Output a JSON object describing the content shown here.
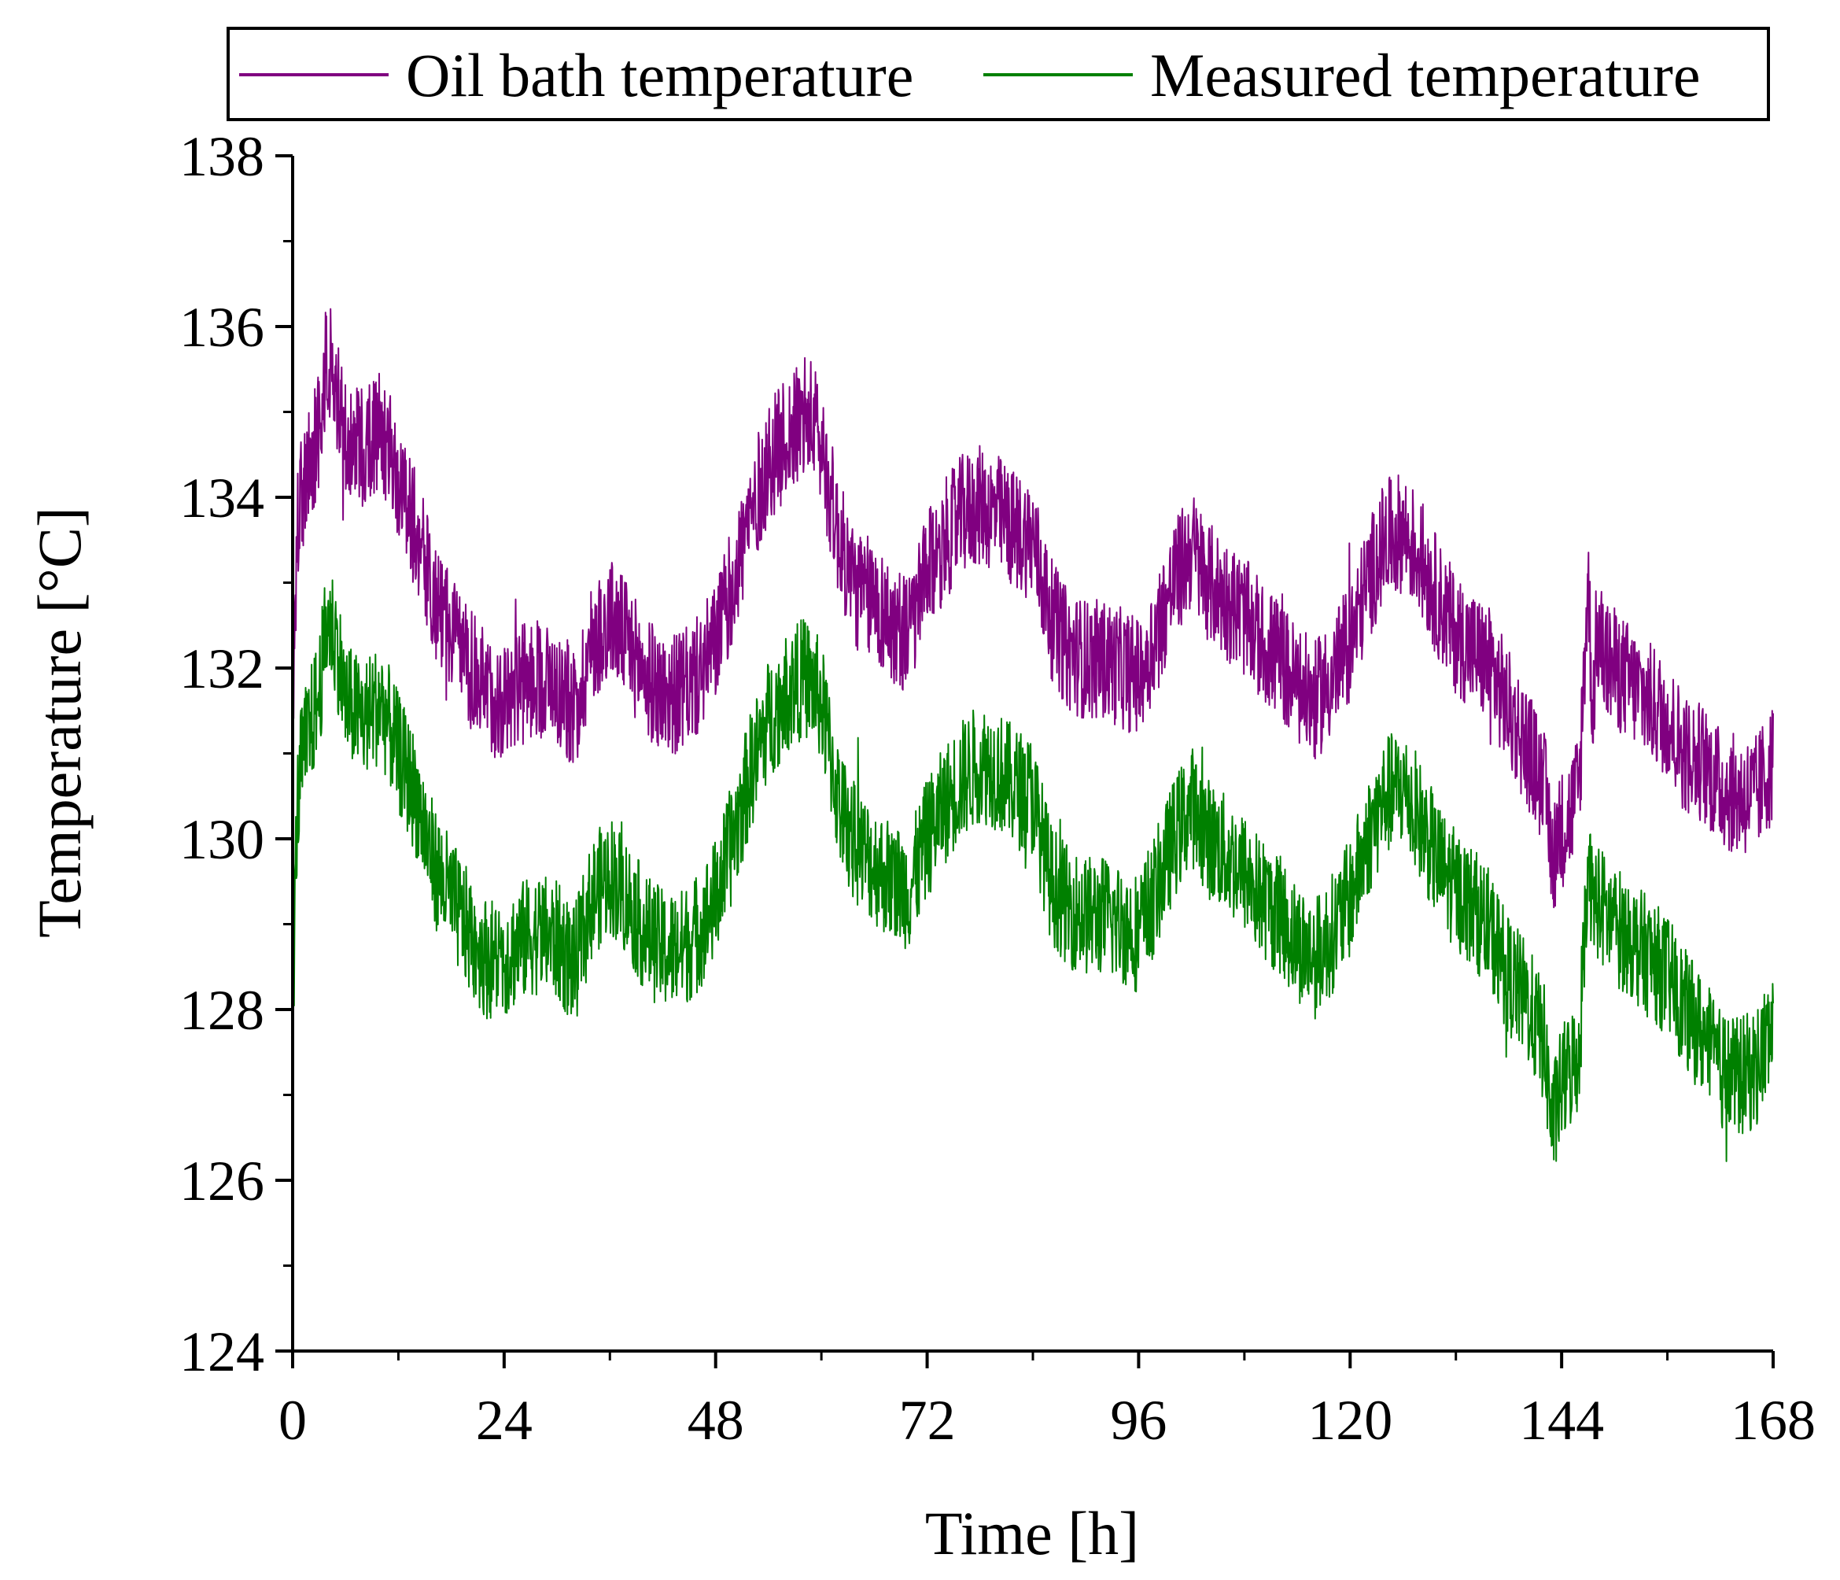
{
  "chart_data": {
    "type": "line",
    "title": "",
    "xlabel": "Time [h]",
    "ylabel": "Temperature [°C]",
    "xlim": [
      0,
      168
    ],
    "ylim": [
      124,
      138
    ],
    "xticks": [
      0,
      24,
      48,
      72,
      96,
      120,
      144,
      168
    ],
    "yticks": [
      124,
      126,
      128,
      130,
      132,
      134,
      136,
      138
    ],
    "x_minor_step": 12,
    "y_minor_step": 1,
    "legend_position": "top",
    "noise_band": 0.75,
    "series": [
      {
        "name": "Oil bath temperature",
        "color": "#800080",
        "x": [
          0,
          0.5,
          1,
          2,
          3,
          4,
          5,
          6,
          8,
          10,
          12,
          14,
          16,
          18,
          20,
          22,
          24,
          26,
          28,
          30,
          32,
          34,
          36,
          38,
          40,
          42,
          44,
          46,
          48,
          50,
          52,
          54,
          56,
          58,
          59,
          60,
          62,
          64,
          66,
          68,
          70,
          72,
          74,
          76,
          78,
          80,
          82,
          84,
          86,
          88,
          90,
          92,
          94,
          96,
          98,
          100,
          102,
          104,
          106,
          108,
          110,
          112,
          114,
          116,
          118,
          120,
          122,
          124,
          126,
          128,
          130,
          132,
          134,
          136,
          138,
          140,
          142,
          143,
          143.5,
          144,
          145,
          146,
          147,
          147.5,
          148,
          149,
          150,
          152,
          154,
          156,
          158,
          160,
          162,
          164,
          166,
          168
        ],
        "values": [
          131.2,
          133.5,
          134.0,
          134.4,
          134.8,
          135.7,
          135.2,
          134.6,
          134.6,
          134.8,
          134.2,
          133.6,
          132.8,
          132.4,
          132.0,
          131.7,
          131.6,
          131.8,
          131.9,
          131.8,
          131.5,
          132.3,
          132.6,
          132.3,
          131.9,
          131.7,
          131.7,
          131.9,
          132.3,
          133.0,
          133.8,
          134.4,
          134.7,
          134.9,
          134.9,
          134.6,
          133.5,
          132.9,
          132.8,
          132.5,
          132.4,
          133.1,
          133.5,
          133.8,
          133.9,
          133.8,
          133.6,
          133.5,
          132.6,
          132.2,
          132.1,
          132.1,
          132.0,
          131.9,
          132.4,
          133.0,
          133.4,
          133.0,
          132.8,
          132.6,
          132.3,
          132.1,
          131.8,
          131.6,
          131.9,
          132.3,
          133.0,
          133.5,
          133.6,
          133.3,
          132.8,
          132.4,
          132.2,
          132.0,
          131.5,
          131.1,
          130.6,
          129.8,
          130.0,
          130.1,
          130.3,
          130.6,
          133.1,
          131.5,
          132.4,
          132.1,
          132.0,
          131.8,
          131.6,
          131.4,
          131.0,
          130.9,
          130.6,
          130.5,
          130.5,
          130.9
        ]
      },
      {
        "name": "Measured temperature",
        "color": "#008000",
        "x": [
          0,
          0.5,
          1,
          2,
          3,
          4,
          5,
          6,
          8,
          10,
          12,
          14,
          16,
          18,
          20,
          22,
          24,
          26,
          28,
          30,
          32,
          34,
          36,
          38,
          40,
          42,
          44,
          46,
          48,
          50,
          52,
          54,
          56,
          58,
          59,
          60,
          62,
          64,
          66,
          68,
          70,
          72,
          74,
          76,
          78,
          80,
          82,
          84,
          86,
          88,
          90,
          92,
          94,
          96,
          98,
          100,
          102,
          104,
          106,
          108,
          110,
          112,
          114,
          116,
          118,
          120,
          122,
          124,
          126,
          128,
          130,
          132,
          134,
          136,
          138,
          140,
          142,
          143,
          143.5,
          144,
          145,
          146,
          147,
          147.5,
          148,
          149,
          150,
          152,
          154,
          156,
          158,
          160,
          162,
          164,
          166,
          168
        ],
        "values": [
          128.0,
          130.3,
          130.9,
          131.3,
          131.7,
          132.6,
          132.3,
          131.6,
          131.4,
          131.6,
          131.0,
          130.5,
          129.7,
          129.3,
          128.9,
          128.6,
          128.6,
          128.8,
          128.9,
          128.8,
          128.5,
          129.3,
          129.6,
          129.3,
          128.9,
          128.7,
          128.7,
          128.9,
          129.3,
          130.0,
          130.8,
          131.4,
          131.7,
          131.9,
          131.8,
          131.6,
          130.4,
          129.9,
          129.7,
          129.5,
          129.4,
          130.0,
          130.4,
          130.7,
          130.9,
          130.8,
          130.6,
          130.5,
          129.5,
          129.2,
          129.1,
          129.1,
          129.0,
          128.9,
          129.4,
          130.0,
          130.4,
          130.0,
          129.8,
          129.6,
          129.3,
          129.1,
          128.8,
          128.6,
          128.9,
          129.3,
          130.0,
          130.5,
          130.6,
          130.2,
          129.7,
          129.4,
          129.2,
          128.9,
          128.4,
          128.1,
          127.6,
          126.6,
          126.9,
          127.1,
          127.3,
          127.5,
          129.9,
          129.2,
          129.3,
          129.1,
          129.0,
          128.8,
          128.6,
          128.4,
          128.0,
          127.7,
          127.3,
          127.2,
          127.3,
          127.8
        ]
      }
    ]
  }
}
